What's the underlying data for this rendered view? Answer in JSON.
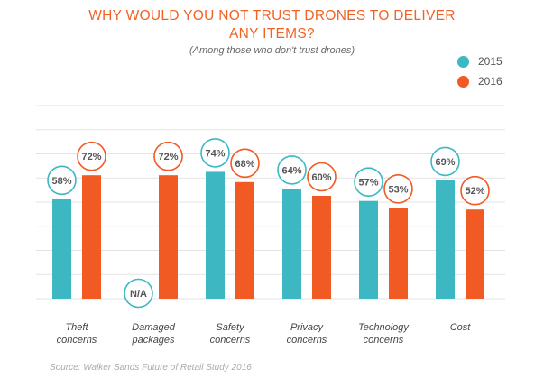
{
  "title_line1": "WHY WOULD YOU NOT TRUST DRONES TO DELIVER",
  "title_line2": "ANY ITEMS?",
  "subtitle": "(Among those who don't trust drones)",
  "source": "Source: Walker Sands Future of Retail Study 2016",
  "colors": {
    "series_2015": "#3db8c3",
    "series_2016": "#f25a24",
    "grid": "#e3e3e3",
    "label_text": "#555555"
  },
  "chart_data": {
    "type": "bar",
    "title": "WHY WOULD YOU NOT TRUST DRONES TO DELIVER ANY ITEMS?",
    "subtitle": "(Among those who don't trust drones)",
    "categories": [
      [
        "Theft",
        "concerns"
      ],
      [
        "Damaged",
        "packages"
      ],
      [
        "Safety",
        "concerns"
      ],
      [
        "Privacy",
        "concerns"
      ],
      [
        "Technology",
        "concerns"
      ],
      [
        "Cost"
      ]
    ],
    "series": [
      {
        "name": "2015",
        "values": [
          58,
          null,
          74,
          64,
          57,
          69
        ],
        "labels": [
          "58%",
          "N/A",
          "74%",
          "64%",
          "57%",
          "69%"
        ]
      },
      {
        "name": "2016",
        "values": [
          72,
          72,
          68,
          60,
          53,
          52
        ],
        "labels": [
          "72%",
          "72%",
          "68%",
          "60%",
          "53%",
          "52%"
        ]
      }
    ],
    "ylim": [
      0,
      90
    ],
    "grid": true,
    "legend": "top-right",
    "data_labels": "circle-badges"
  }
}
